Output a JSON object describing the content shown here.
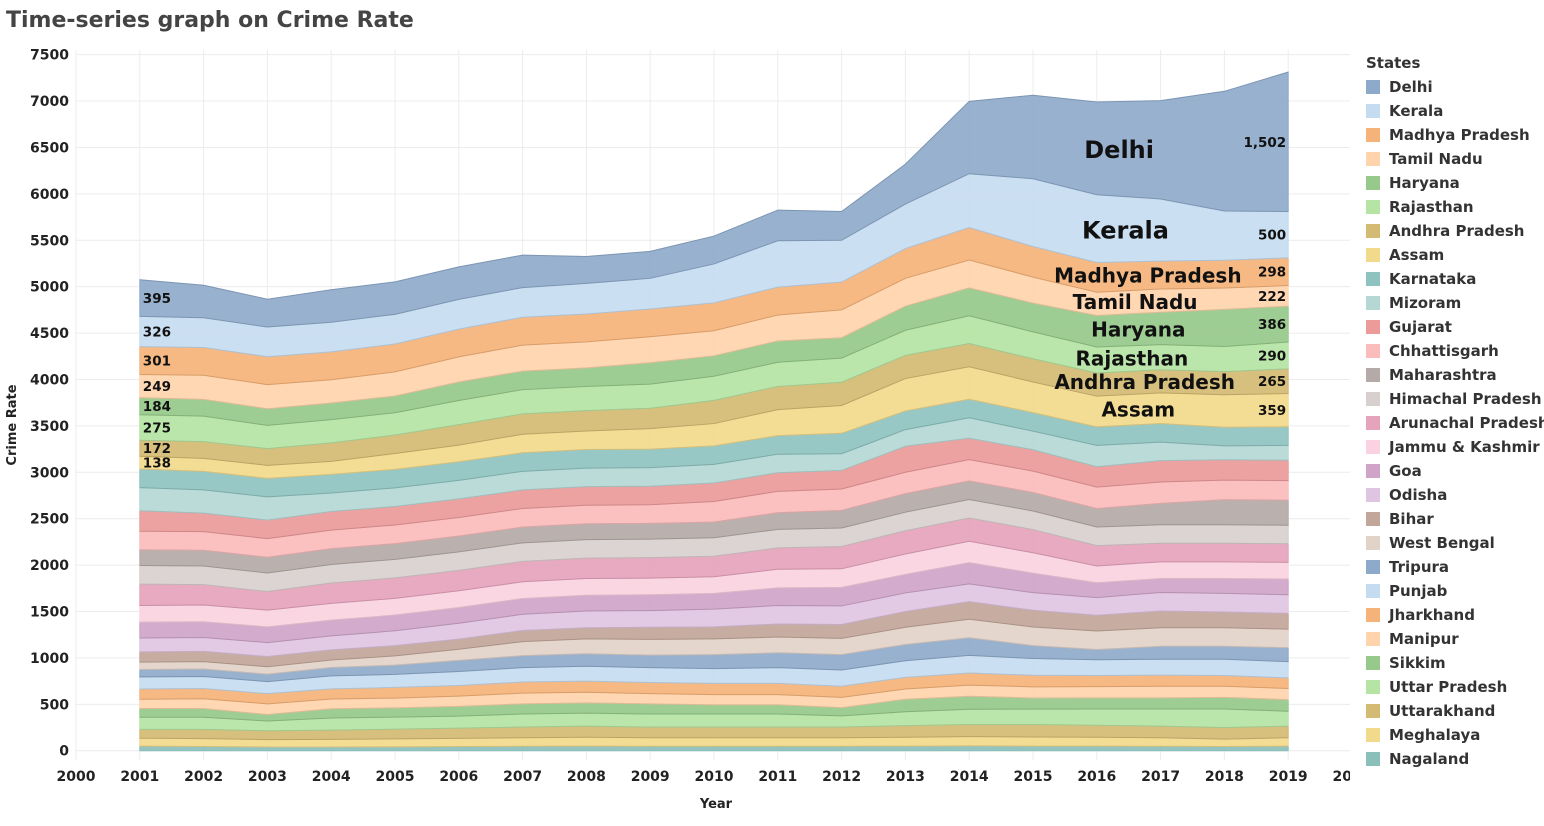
{
  "chart_data": {
    "type": "area",
    "title": "Time-series graph on Crime Rate",
    "xlabel": "Year",
    "ylabel": "Crime Rate",
    "x_ticks": [
      "2000",
      "2001",
      "2002",
      "2003",
      "2004",
      "2005",
      "2006",
      "2007",
      "2008",
      "2009",
      "2010",
      "2011",
      "2012",
      "2013",
      "2014",
      "2015",
      "2016",
      "2017",
      "2018",
      "2019",
      "2020"
    ],
    "y_ticks": [
      "0",
      "500",
      "1000",
      "1500",
      "2000",
      "2500",
      "3000",
      "3500",
      "4000",
      "4500",
      "5000",
      "5500",
      "6000",
      "6500",
      "7000",
      "7500"
    ],
    "xlim": [
      2000,
      2020
    ],
    "ylim": [
      -100,
      7550
    ],
    "grid": true,
    "stacked": true,
    "legend_title": "States",
    "legend_position": "right",
    "x": [
      2001,
      2002,
      2003,
      2004,
      2005,
      2006,
      2007,
      2008,
      2009,
      2010,
      2011,
      2012,
      2013,
      2014,
      2015,
      2016,
      2017,
      2018,
      2019
    ],
    "series": [
      {
        "name": "Nagaland",
        "color": "#8bbfba",
        "values": [
          50,
          45,
          40,
          40,
          42,
          45,
          48,
          50,
          48,
          48,
          48,
          48,
          50,
          52,
          50,
          50,
          48,
          45,
          50
        ]
      },
      {
        "name": "Meghalaya",
        "color": "#f2da8c",
        "values": [
          85,
          85,
          80,
          82,
          85,
          88,
          92,
          95,
          92,
          92,
          92,
          92,
          95,
          100,
          98,
          95,
          92,
          80,
          90
        ]
      },
      {
        "name": "Uttarakhand",
        "color": "#d4bb73",
        "values": [
          95,
          100,
          95,
          100,
          105,
          110,
          115,
          120,
          115,
          115,
          115,
          115,
          125,
          130,
          135,
          130,
          125,
          125,
          125
        ]
      },
      {
        "name": "Uttar Pradesh",
        "color": "#b5e4a4",
        "values": [
          130,
          130,
          105,
          130,
          130,
          130,
          140,
          140,
          140,
          140,
          140,
          120,
          150,
          165,
          165,
          175,
          185,
          200,
          160
        ]
      },
      {
        "name": "Sikkim",
        "color": "#96c98a",
        "values": [
          95,
          95,
          70,
          100,
          100,
          105,
          110,
          110,
          110,
          100,
          100,
          90,
          135,
          140,
          120,
          120,
          120,
          125,
          125
        ]
      },
      {
        "name": "Manipur",
        "color": "#ffd4ad",
        "values": [
          100,
          105,
          115,
          105,
          105,
          110,
          115,
          115,
          110,
          110,
          110,
          110,
          110,
          120,
          120,
          120,
          125,
          120,
          120
        ]
      },
      {
        "name": "Jharkhand",
        "color": "#f5b379",
        "values": [
          110,
          110,
          110,
          110,
          115,
          115,
          120,
          120,
          120,
          120,
          120,
          120,
          125,
          130,
          125,
          120,
          120,
          115,
          115
        ]
      },
      {
        "name": "Punjab",
        "color": "#c5dcf0",
        "values": [
          130,
          130,
          130,
          140,
          140,
          150,
          155,
          160,
          160,
          160,
          170,
          175,
          180,
          190,
          180,
          170,
          170,
          175,
          175
        ]
      },
      {
        "name": "Tripura",
        "color": "#8eaacb",
        "values": [
          80,
          80,
          80,
          90,
          100,
          120,
          130,
          135,
          135,
          150,
          160,
          165,
          175,
          190,
          140,
          110,
          140,
          140,
          150
        ]
      },
      {
        "name": "West Bengal",
        "color": "#e2d3c9",
        "values": [
          80,
          80,
          80,
          80,
          100,
          120,
          150,
          160,
          170,
          170,
          170,
          175,
          185,
          200,
          200,
          200,
          200,
          200,
          200
        ]
      },
      {
        "name": "Bihar",
        "color": "#c2a699",
        "values": [
          110,
          110,
          110,
          110,
          110,
          110,
          120,
          120,
          130,
          130,
          140,
          150,
          170,
          190,
          180,
          170,
          180,
          170,
          170
        ]
      },
      {
        "name": "Odisha",
        "color": "#e0c5e2",
        "values": [
          150,
          150,
          150,
          150,
          160,
          170,
          175,
          180,
          180,
          190,
          200,
          200,
          200,
          190,
          190,
          190,
          200,
          200,
          200
        ]
      },
      {
        "name": "Goa",
        "color": "#cfa4c8",
        "values": [
          170,
          170,
          170,
          170,
          170,
          170,
          170,
          170,
          170,
          170,
          190,
          200,
          200,
          230,
          210,
          160,
          150,
          160,
          170
        ]
      },
      {
        "name": "Jammu & Kashmir",
        "color": "#fad2e1",
        "values": [
          180,
          180,
          180,
          180,
          180,
          180,
          180,
          180,
          180,
          180,
          200,
          200,
          220,
          230,
          220,
          180,
          180,
          180,
          180
        ]
      },
      {
        "name": "Arunachal Pradesh",
        "color": "#e5a3bc",
        "values": [
          230,
          220,
          200,
          220,
          220,
          220,
          220,
          220,
          220,
          220,
          230,
          240,
          250,
          250,
          250,
          220,
          200,
          200,
          200
        ]
      },
      {
        "name": "Himachal Pradesh",
        "color": "#d8d0ce",
        "values": [
          200,
          200,
          200,
          200,
          200,
          200,
          200,
          200,
          200,
          200,
          200,
          200,
          200,
          200,
          200,
          200,
          200,
          200,
          200
        ]
      },
      {
        "name": "Maharashtra",
        "color": "#b4aaa7",
        "values": [
          170,
          170,
          170,
          170,
          170,
          170,
          170,
          170,
          170,
          170,
          180,
          190,
          200,
          200,
          200,
          200,
          230,
          270,
          270
        ]
      },
      {
        "name": "Chhattisgarh",
        "color": "#fbbcbc",
        "values": [
          200,
          200,
          200,
          200,
          200,
          200,
          200,
          200,
          200,
          220,
          230,
          230,
          230,
          230,
          230,
          230,
          230,
          210,
          210
        ]
      },
      {
        "name": "Gujarat",
        "color": "#ec9a9a",
        "values": [
          220,
          200,
          200,
          200,
          200,
          200,
          200,
          200,
          200,
          200,
          200,
          200,
          280,
          230,
          230,
          220,
          230,
          220,
          220
        ]
      },
      {
        "name": "Mizoram",
        "color": "#b5d8d5",
        "values": [
          250,
          250,
          250,
          200,
          200,
          200,
          200,
          200,
          200,
          200,
          200,
          180,
          180,
          220,
          200,
          230,
          200,
          150,
          160
        ]
      },
      {
        "name": "Karnataka",
        "color": "#8fc3c0",
        "values": [
          200,
          200,
          200,
          200,
          200,
          200,
          200,
          200,
          200,
          200,
          200,
          220,
          200,
          200,
          200,
          200,
          200,
          200,
          200
        ]
      },
      {
        "name": "Assam",
        "color": "#f2da8c",
        "values": [
          138,
          140,
          140,
          140,
          170,
          180,
          200,
          200,
          220,
          240,
          280,
          300,
          350,
          350,
          330,
          330,
          330,
          350,
          359
        ]
      },
      {
        "name": "Andhra Pradesh",
        "color": "#d4bb73",
        "values": [
          172,
          180,
          180,
          200,
          200,
          220,
          220,
          220,
          220,
          250,
          250,
          250,
          250,
          250,
          250,
          250,
          250,
          250,
          265
        ]
      },
      {
        "name": "Rajasthan",
        "color": "#b5e4a4",
        "values": [
          275,
          275,
          250,
          250,
          240,
          260,
          260,
          260,
          260,
          260,
          260,
          260,
          270,
          300,
          290,
          280,
          270,
          270,
          290
        ]
      },
      {
        "name": "Haryana",
        "color": "#96c98a",
        "values": [
          184,
          180,
          180,
          180,
          180,
          200,
          200,
          200,
          230,
          220,
          230,
          220,
          260,
          300,
          310,
          340,
          350,
          400,
          386
        ]
      },
      {
        "name": "Tamil Nadu",
        "color": "#ffd4ad",
        "values": [
          249,
          260,
          260,
          250,
          260,
          270,
          280,
          280,
          280,
          270,
          280,
          300,
          300,
          300,
          280,
          250,
          250,
          230,
          222
        ]
      },
      {
        "name": "Madhya Pradesh",
        "color": "#f5b379",
        "values": [
          301,
          300,
          300,
          300,
          300,
          300,
          300,
          300,
          300,
          300,
          300,
          300,
          320,
          350,
          330,
          320,
          300,
          300,
          298
        ]
      },
      {
        "name": "Kerala",
        "color": "#c5dcf0",
        "values": [
          326,
          320,
          320,
          320,
          320,
          320,
          320,
          330,
          330,
          420,
          500,
          450,
          480,
          580,
          730,
          730,
          670,
          530,
          500
        ]
      },
      {
        "name": "Delhi",
        "color": "#8eaacb",
        "values": [
          395,
          350,
          300,
          350,
          350,
          350,
          350,
          290,
          290,
          300,
          330,
          310,
          430,
          780,
          900,
          1000,
          1060,
          1290,
          1502
        ]
      }
    ],
    "value_labels_left": [
      {
        "series": "Delhi",
        "text": "395"
      },
      {
        "series": "Kerala",
        "text": "326"
      },
      {
        "series": "Madhya Pradesh",
        "text": "301"
      },
      {
        "series": "Tamil Nadu",
        "text": "249"
      },
      {
        "series": "Haryana",
        "text": "184"
      },
      {
        "series": "Rajasthan",
        "text": "275"
      },
      {
        "series": "Andhra Pradesh",
        "text": "172"
      },
      {
        "series": "Assam",
        "text": "138"
      }
    ],
    "value_labels_right": [
      {
        "series": "Delhi",
        "text": "1,502"
      },
      {
        "series": "Kerala",
        "text": "500"
      },
      {
        "series": "Madhya Pradesh",
        "text": "298"
      },
      {
        "series": "Tamil Nadu",
        "text": "222"
      },
      {
        "series": "Haryana",
        "text": "386"
      },
      {
        "series": "Rajasthan",
        "text": "290"
      },
      {
        "series": "Andhra Pradesh",
        "text": "265"
      },
      {
        "series": "Assam",
        "text": "359"
      }
    ],
    "name_labels": [
      {
        "series": "Delhi",
        "text": "Delhi",
        "x": 2016.35
      },
      {
        "series": "Kerala",
        "text": "Kerala",
        "x": 2016.45
      },
      {
        "series": "Madhya Pradesh",
        "text": "Madhya Pradesh",
        "x": 2016.8
      },
      {
        "series": "Tamil Nadu",
        "text": "Tamil Nadu",
        "x": 2016.6
      },
      {
        "series": "Haryana",
        "text": "Haryana",
        "x": 2016.65
      },
      {
        "series": "Rajasthan",
        "text": "Rajasthan",
        "x": 2016.55
      },
      {
        "series": "Andhra Pradesh",
        "text": "Andhra Pradesh",
        "x": 2016.75
      },
      {
        "series": "Assam",
        "text": "Assam",
        "x": 2016.65
      }
    ]
  }
}
